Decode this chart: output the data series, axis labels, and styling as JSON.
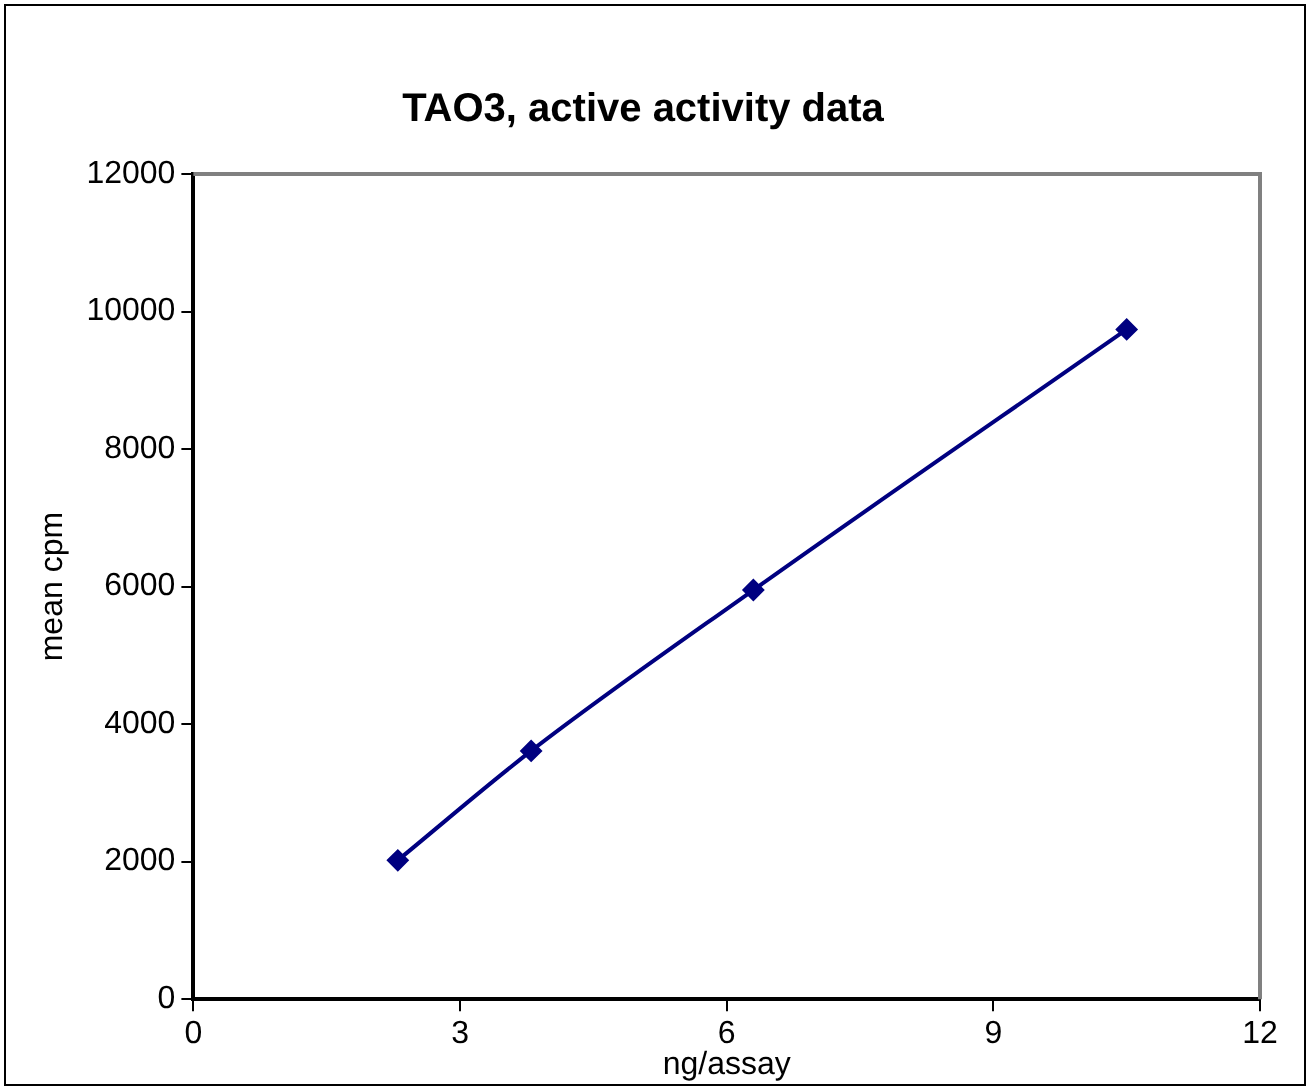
{
  "chart_data": {
    "type": "line",
    "title": "TAO3, active activity data",
    "xlabel": "ng/assay",
    "ylabel": "mean cpm",
    "x": [
      2.3,
      3.8,
      6.3,
      10.5
    ],
    "series": [
      {
        "color": "#000080",
        "values": [
          2020,
          3610,
          5950,
          9740
        ]
      }
    ],
    "xlim": [
      0,
      12
    ],
    "xticks": [
      0,
      3,
      6,
      9,
      12
    ],
    "ylim": [
      0,
      12000
    ],
    "yticks": [
      0,
      2000,
      4000,
      6000,
      8000,
      10000,
      12000
    ],
    "grid": false,
    "legend": false,
    "marker": "diamond",
    "line_style": "solid"
  }
}
